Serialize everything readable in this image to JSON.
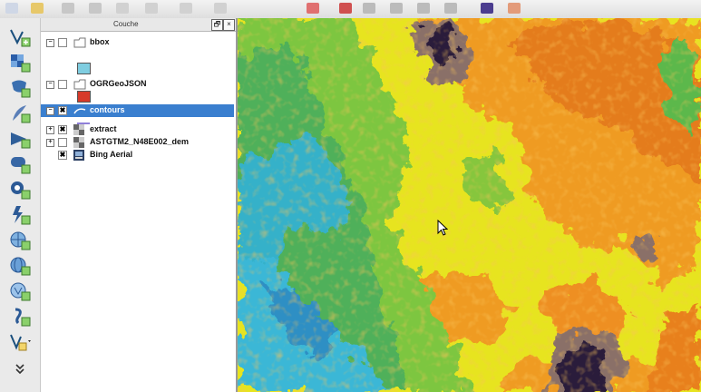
{
  "panel": {
    "title": "Couche",
    "float_glyph": "🗗",
    "close_glyph": "×"
  },
  "layers": [
    {
      "name": "bbox",
      "kind": "vector",
      "checked": false,
      "swatch": "#7fcde0"
    },
    {
      "name": "OGRGeoJSON",
      "kind": "vector",
      "checked": false,
      "swatch": "#d63a2a"
    },
    {
      "name": "contours",
      "kind": "vector",
      "checked": true,
      "selected": true
    },
    {
      "name": "extract",
      "kind": "raster",
      "checked": true
    },
    {
      "name": "ASTGTM2_N48E002_dem",
      "kind": "raster",
      "checked": false
    },
    {
      "name": "Bing Aerial",
      "kind": "raster",
      "checked": true
    }
  ],
  "left_tools": [
    "add-vector-icon",
    "add-raster-icon",
    "add-postgis-icon",
    "add-spatialite-icon",
    "add-mssql-icon",
    "add-oracle-icon",
    "add-db2-icon",
    "add-delimited-text-icon",
    "add-wms-icon",
    "add-wcs-icon",
    "add-wfs-icon",
    "add-gps-icon",
    "new-layer-icon",
    "more-tools-icon"
  ],
  "colors": {
    "selection": "#3a7fcf",
    "map_low": "#3ab6d3",
    "map_mid": "#f1e21c",
    "map_high": "#e87a1f",
    "map_peak": "#2a1f3a"
  }
}
